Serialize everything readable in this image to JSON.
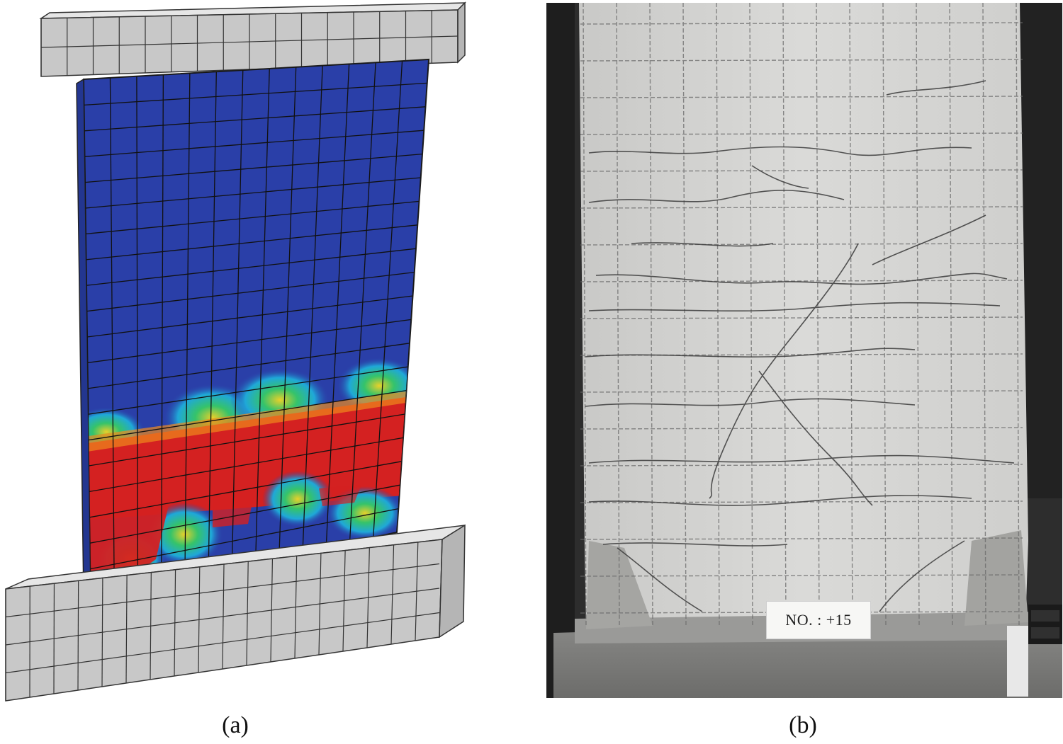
{
  "figure": {
    "panel_a_caption": "(a)",
    "panel_b_caption": "(b)"
  },
  "photo": {
    "specimen_label": "NO. :  +15"
  },
  "colors": {
    "mesh_gray": "#c8c8c8",
    "low": "#2a3fa8",
    "cyan": "#1fa8d8",
    "green": "#35c36a",
    "yellow": "#e8d02a",
    "orange": "#f08a1c",
    "red": "#d42121"
  }
}
